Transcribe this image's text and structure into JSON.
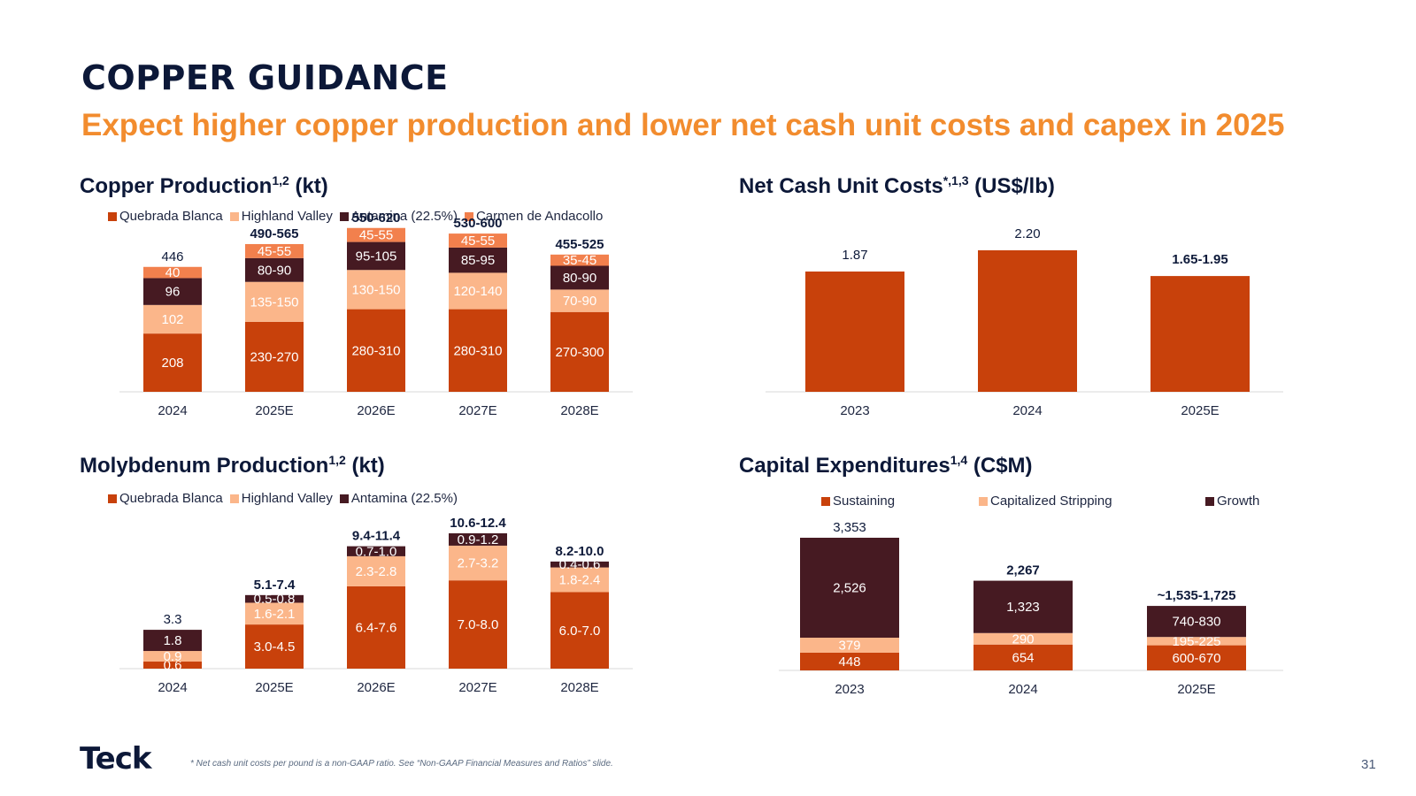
{
  "page": {
    "title": "COPPER GUIDANCE",
    "subtitle": "Expect higher copper production and lower net cash unit costs and capex in 2025",
    "logo": "Teck",
    "footnote": "* Net cash unit costs per pound is a non-GAAP ratio. See “Non-GAAP Financial Measures and Ratios” slide.",
    "page_number": "31"
  },
  "colors": {
    "quebrada": "#c8410b",
    "highland": "#fbb68a",
    "antamina": "#461a22",
    "carmen": "#f2804d",
    "sustaining": "#c8410b",
    "stripping": "#fbb68a",
    "growth": "#461a22",
    "axis": "#d9d9d9"
  },
  "chart_titles": {
    "copper": {
      "main": "Copper Production",
      "sup": "1,2",
      "unit": " (kt)"
    },
    "netcash": {
      "main": "Net Cash Unit Costs",
      "sup": "*,1,3",
      "unit": " (US$/lb)"
    },
    "moly": {
      "main": "Molybdenum Production",
      "sup": "1,2",
      "unit": " (kt)"
    },
    "capex": {
      "main": "Capital Expenditures",
      "sup": "1,4",
      "unit": " (C$M)"
    }
  },
  "legends": {
    "copper": [
      "Quebrada Blanca",
      "Highland Valley",
      "Antamina (22.5%)",
      "Carmen de Andacollo"
    ],
    "moly": [
      "Quebrada Blanca",
      "Highland Valley",
      "Antamina (22.5%)"
    ],
    "capex": [
      "Sustaining",
      "Capitalized Stripping",
      "Growth"
    ]
  },
  "chart_data": [
    {
      "id": "copper",
      "type": "bar",
      "stacked": true,
      "title": "Copper Production (kt)",
      "categories": [
        "2024",
        "2025E",
        "2026E",
        "2027E",
        "2028E"
      ],
      "series": [
        {
          "name": "Quebrada Blanca",
          "values": [
            208,
            250,
            295,
            295,
            285
          ],
          "labels": [
            "208",
            "230-270",
            "280-310",
            "280-310",
            "270-300"
          ]
        },
        {
          "name": "Highland Valley",
          "values": [
            102,
            142.5,
            140,
            130,
            80
          ],
          "labels": [
            "102",
            "135-150",
            "130-150",
            "120-140",
            "70-90"
          ]
        },
        {
          "name": "Antamina (22.5%)",
          "values": [
            96,
            85,
            100,
            90,
            85
          ],
          "labels": [
            "96",
            "80-90",
            "95-105",
            "85-95",
            "80-90"
          ]
        },
        {
          "name": "Carmen de Andacollo",
          "values": [
            40,
            50,
            50,
            50,
            40
          ],
          "labels": [
            "40",
            "45-55",
            "45-55",
            "45-55",
            "35-45"
          ]
        }
      ],
      "totals": [
        "446",
        "490-565",
        "550-620",
        "530-600",
        "455-525"
      ],
      "ylim": [
        0,
        640
      ]
    },
    {
      "id": "netcash",
      "type": "bar",
      "title": "Net Cash Unit Costs (US$/lb)",
      "categories": [
        "2023",
        "2024",
        "2025E"
      ],
      "values": [
        1.87,
        2.2,
        1.8
      ],
      "labels": [
        "1.87",
        "2.20",
        "1.65-1.95"
      ],
      "ylim": [
        0,
        2.6
      ]
    },
    {
      "id": "moly",
      "type": "bar",
      "stacked": true,
      "title": "Molybdenum Production (kt)",
      "categories": [
        "2024",
        "2025E",
        "2026E",
        "2027E",
        "2028E"
      ],
      "series": [
        {
          "name": "Quebrada Blanca",
          "values": [
            0.6,
            3.75,
            7.0,
            7.5,
            6.5
          ],
          "labels": [
            "0.6",
            "3.0-4.5",
            "6.4-7.6",
            "7.0-8.0",
            "6.0-7.0"
          ]
        },
        {
          "name": "Highland Valley",
          "values": [
            0.9,
            1.85,
            2.55,
            2.95,
            2.1
          ],
          "labels": [
            "0.9",
            "1.6-2.1",
            "2.3-2.8",
            "2.7-3.2",
            "1.8-2.4"
          ]
        },
        {
          "name": "Antamina (22.5%)",
          "values": [
            1.8,
            0.65,
            0.85,
            1.05,
            0.5
          ],
          "labels": [
            "1.8",
            "0.5-0.8",
            "0.7-1.0",
            "0.9-1.2",
            "0.4-0.6"
          ]
        }
      ],
      "totals": [
        "3.3",
        "5.1-7.4",
        "9.4-11.4",
        "10.6-12.4",
        "8.2-10.0"
      ],
      "ylim": [
        0,
        13.2
      ]
    },
    {
      "id": "capex",
      "type": "bar",
      "stacked": true,
      "title": "Capital Expenditures (C$M)",
      "categories": [
        "2023",
        "2024",
        "2025E"
      ],
      "series": [
        {
          "name": "Sustaining",
          "values": [
            448,
            654,
            635
          ],
          "labels": [
            "448",
            "654",
            "600-670"
          ]
        },
        {
          "name": "Capitalized Stripping",
          "values": [
            379,
            290,
            210
          ],
          "labels": [
            "379",
            "290",
            "195-225"
          ]
        },
        {
          "name": "Growth",
          "values": [
            2526,
            1323,
            785
          ],
          "labels": [
            "2,526",
            "1,323",
            "740-830"
          ]
        }
      ],
      "totals": [
        "3,353",
        "2,267",
        "~1,535-1,725"
      ],
      "ylim": [
        0,
        3900
      ]
    }
  ]
}
